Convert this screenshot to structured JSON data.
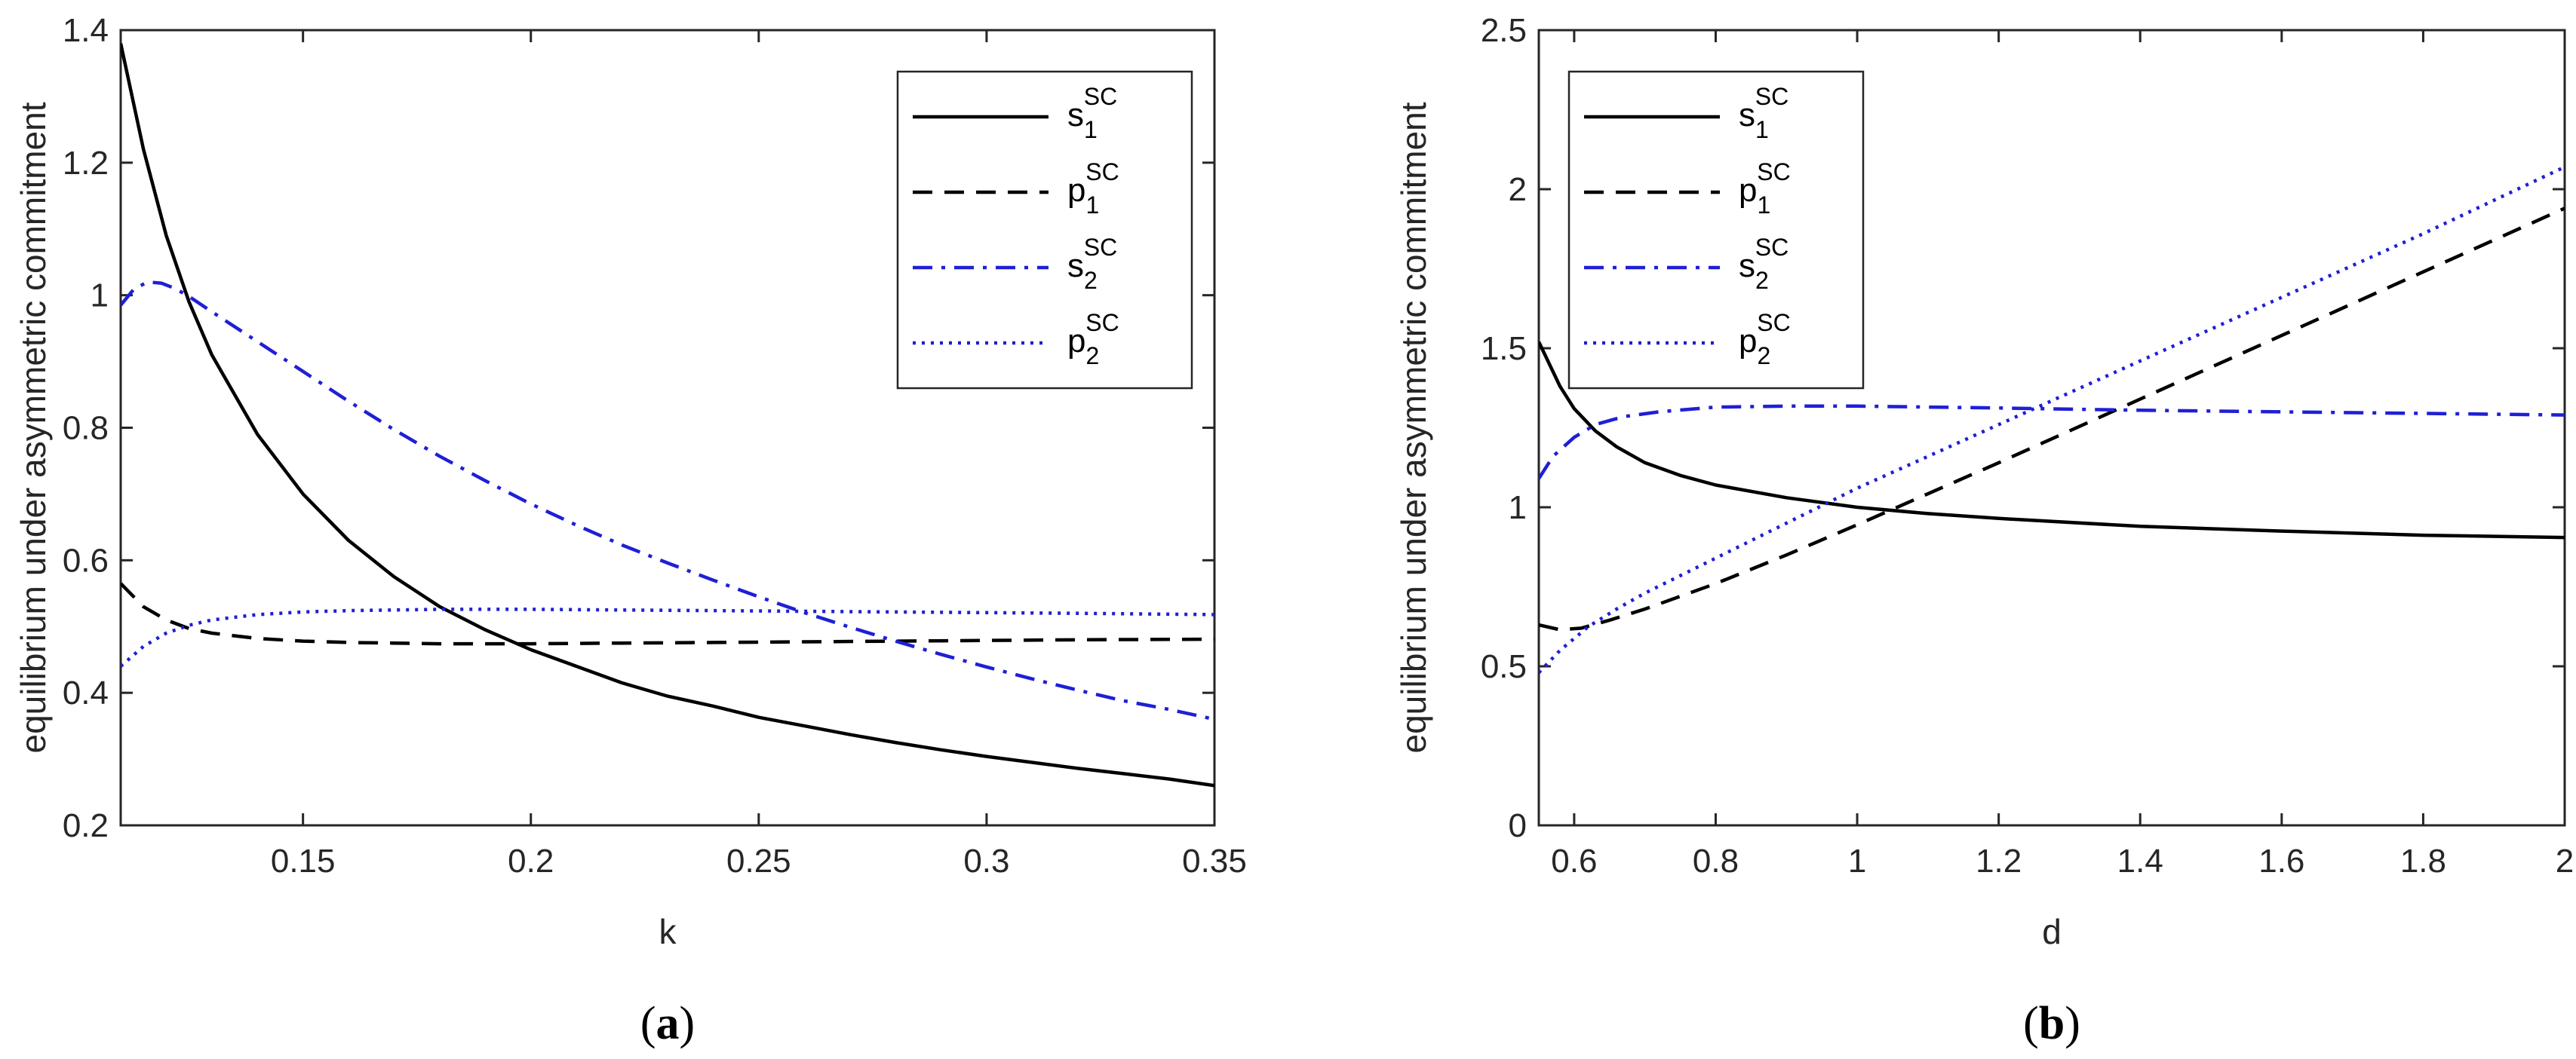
{
  "chart_data": [
    {
      "type": "line",
      "caption": "a",
      "xlabel": "k",
      "ylabel": "equilibrium under asymmetric commitment",
      "xlim": [
        0.11,
        0.35
      ],
      "ylim": [
        0.2,
        1.4
      ],
      "xticks": [
        "0.15",
        "0.2",
        "0.25",
        "0.3",
        "0.35"
      ],
      "xtick_values": [
        0.15,
        0.2,
        0.25,
        0.3,
        0.35
      ],
      "yticks": [
        "0.2",
        "0.4",
        "0.6",
        "0.8",
        "1",
        "1.2",
        "1.4"
      ],
      "ytick_values": [
        0.2,
        0.4,
        0.6,
        0.8,
        1,
        1.2,
        1.4
      ],
      "legend_position": "top-right",
      "series": [
        {
          "name": "s",
          "sub": "1",
          "sup": "SC",
          "style": "solid",
          "color": "#000000",
          "x": [
            0.11,
            0.115,
            0.12,
            0.125,
            0.13,
            0.14,
            0.15,
            0.16,
            0.17,
            0.18,
            0.19,
            0.2,
            0.21,
            0.22,
            0.23,
            0.24,
            0.25,
            0.26,
            0.27,
            0.28,
            0.29,
            0.3,
            0.31,
            0.32,
            0.33,
            0.34,
            0.35
          ],
          "y": [
            1.38,
            1.22,
            1.09,
            0.99,
            0.91,
            0.79,
            0.7,
            0.63,
            0.575,
            0.53,
            0.495,
            0.465,
            0.44,
            0.415,
            0.395,
            0.38,
            0.363,
            0.35,
            0.337,
            0.325,
            0.314,
            0.304,
            0.295,
            0.286,
            0.278,
            0.27,
            0.26
          ]
        },
        {
          "name": "p",
          "sub": "1",
          "sup": "SC",
          "style": "dashed",
          "color": "#000000",
          "x": [
            0.11,
            0.115,
            0.12,
            0.125,
            0.13,
            0.14,
            0.15,
            0.16,
            0.17,
            0.18,
            0.2,
            0.22,
            0.24,
            0.26,
            0.28,
            0.3,
            0.32,
            0.35
          ],
          "y": [
            0.565,
            0.53,
            0.51,
            0.497,
            0.49,
            0.482,
            0.478,
            0.476,
            0.475,
            0.474,
            0.474,
            0.475,
            0.476,
            0.477,
            0.478,
            0.479,
            0.48,
            0.481
          ]
        },
        {
          "name": "s",
          "sub": "2",
          "sup": "SC",
          "style": "dashdot",
          "color": "#1f1fd6",
          "x": [
            0.11,
            0.113,
            0.116,
            0.119,
            0.122,
            0.125,
            0.13,
            0.14,
            0.15,
            0.16,
            0.17,
            0.18,
            0.19,
            0.2,
            0.21,
            0.22,
            0.23,
            0.24,
            0.25,
            0.26,
            0.27,
            0.28,
            0.29,
            0.3,
            0.31,
            0.32,
            0.33,
            0.34,
            0.35
          ],
          "y": [
            0.985,
            1.01,
            1.02,
            1.018,
            1.01,
            0.998,
            0.975,
            0.93,
            0.885,
            0.84,
            0.797,
            0.757,
            0.72,
            0.685,
            0.653,
            0.623,
            0.596,
            0.57,
            0.545,
            0.521,
            0.499,
            0.478,
            0.458,
            0.439,
            0.421,
            0.404,
            0.388,
            0.375,
            0.36
          ]
        },
        {
          "name": "p",
          "sub": "2",
          "sup": "SC",
          "style": "dotted",
          "color": "#1f1fd6",
          "x": [
            0.11,
            0.115,
            0.12,
            0.125,
            0.13,
            0.14,
            0.15,
            0.16,
            0.17,
            0.18,
            0.2,
            0.22,
            0.24,
            0.26,
            0.28,
            0.3,
            0.32,
            0.35
          ],
          "y": [
            0.44,
            0.47,
            0.49,
            0.502,
            0.51,
            0.518,
            0.522,
            0.524,
            0.525,
            0.526,
            0.526,
            0.525,
            0.524,
            0.523,
            0.522,
            0.521,
            0.52,
            0.518
          ]
        }
      ]
    },
    {
      "type": "line",
      "caption": "b",
      "xlabel": "d",
      "ylabel": "equilibrium under asymmetric commitment",
      "xlim": [
        0.55,
        2
      ],
      "ylim": [
        0,
        2.5
      ],
      "xticks": [
        "0.6",
        "0.8",
        "1",
        "1.2",
        "1.4",
        "1.6",
        "1.8",
        "2"
      ],
      "xtick_values": [
        0.6,
        0.8,
        1,
        1.2,
        1.4,
        1.6,
        1.8,
        2
      ],
      "yticks": [
        "0",
        "0.5",
        "1",
        "1.5",
        "2",
        "2.5"
      ],
      "ytick_values": [
        0,
        0.5,
        1,
        1.5,
        2,
        2.5
      ],
      "legend_position": "top-left",
      "series": [
        {
          "name": "s",
          "sub": "1",
          "sup": "SC",
          "style": "solid",
          "color": "#000000",
          "x": [
            0.55,
            0.58,
            0.6,
            0.63,
            0.66,
            0.7,
            0.75,
            0.8,
            0.9,
            1.0,
            1.1,
            1.2,
            1.4,
            1.6,
            1.8,
            2.0
          ],
          "y": [
            1.52,
            1.38,
            1.31,
            1.24,
            1.19,
            1.14,
            1.1,
            1.07,
            1.03,
            1.0,
            0.98,
            0.965,
            0.94,
            0.925,
            0.912,
            0.905
          ]
        },
        {
          "name": "p",
          "sub": "1",
          "sup": "SC",
          "style": "dashed",
          "color": "#000000",
          "x": [
            0.55,
            0.58,
            0.61,
            0.65,
            0.7,
            0.8,
            0.9,
            1.0,
            1.2,
            1.4,
            1.6,
            1.8,
            2.0
          ],
          "y": [
            0.63,
            0.615,
            0.62,
            0.645,
            0.68,
            0.76,
            0.85,
            0.945,
            1.14,
            1.34,
            1.54,
            1.74,
            1.94
          ]
        },
        {
          "name": "s",
          "sub": "2",
          "sup": "SC",
          "style": "dashdot",
          "color": "#1f1fd6",
          "x": [
            0.55,
            0.57,
            0.6,
            0.63,
            0.67,
            0.72,
            0.8,
            0.9,
            1.0,
            1.2,
            1.4,
            1.6,
            1.8,
            2.0
          ],
          "y": [
            1.09,
            1.16,
            1.22,
            1.26,
            1.285,
            1.3,
            1.315,
            1.318,
            1.318,
            1.312,
            1.305,
            1.3,
            1.295,
            1.29
          ]
        },
        {
          "name": "p",
          "sub": "2",
          "sup": "SC",
          "style": "dotted",
          "color": "#1f1fd6",
          "x": [
            0.55,
            0.58,
            0.62,
            0.66,
            0.7,
            0.8,
            0.9,
            1.0,
            1.2,
            1.4,
            1.6,
            1.8,
            2.0
          ],
          "y": [
            0.48,
            0.55,
            0.625,
            0.68,
            0.73,
            0.84,
            0.95,
            1.06,
            1.26,
            1.46,
            1.66,
            1.86,
            2.07
          ]
        }
      ]
    }
  ]
}
